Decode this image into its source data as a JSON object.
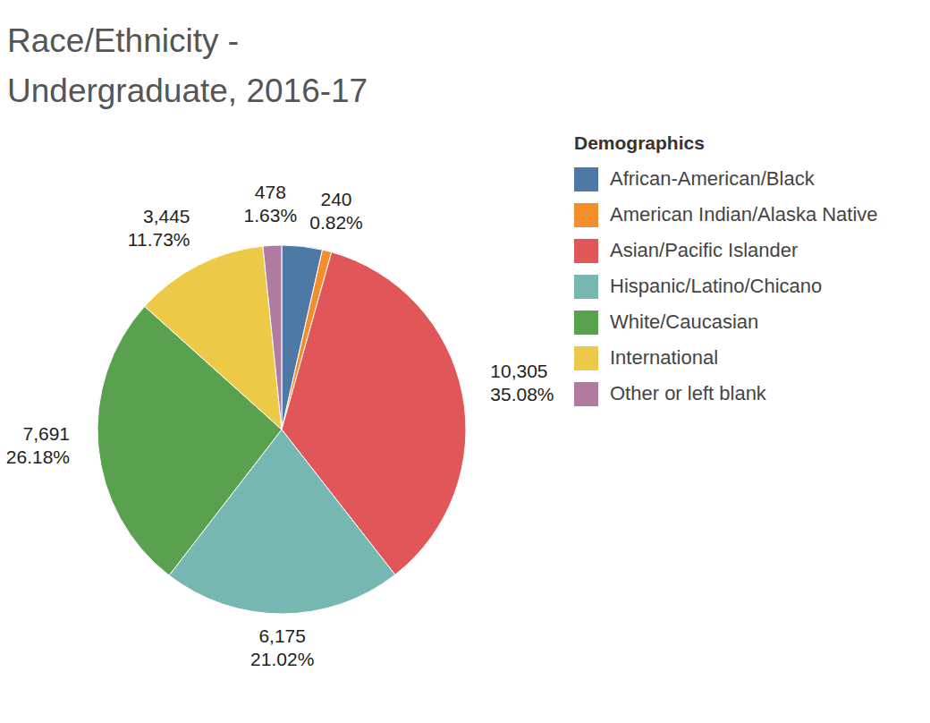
{
  "chart_data": {
    "type": "pie",
    "title": "Race/Ethnicity - Undergraduate, 2016-17",
    "legend_title": "Demographics",
    "legend": "right",
    "categories": [
      "African-American/Black",
      "American Indian/Alaska Native",
      "Asian/Pacific Islander",
      "Hispanic/Latino/Chicano",
      "White/Caucasian",
      "International",
      "Other or left blank"
    ],
    "values": [
      1042,
      240,
      10305,
      6175,
      7691,
      3445,
      478
    ],
    "value_labels": [
      null,
      "240",
      "10,305",
      "6,175",
      "7,691",
      "3,445",
      "478"
    ],
    "percent_labels": [
      null,
      "0.82%",
      "35.08%",
      "21.02%",
      "26.18%",
      "11.73%",
      "1.63%"
    ],
    "colors": [
      "#4e79a7",
      "#f28e2b",
      "#e15759",
      "#76b7b2",
      "#59a14f",
      "#edc948",
      "#b07aa1"
    ],
    "data_labels": true
  }
}
